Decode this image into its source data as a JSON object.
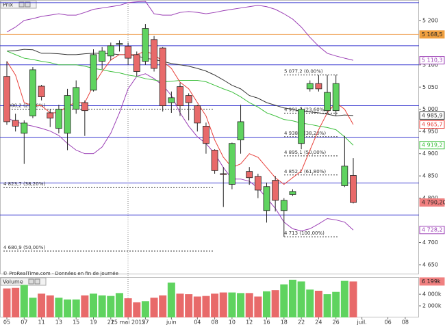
{
  "chart_data": [
    {
      "type": "candlestick",
      "title": "Prix",
      "note": "© ProRealTime.com · Données en fin de journée",
      "ylim": [
        4630,
        5246
      ],
      "yticks": [
        {
          "value": 5200,
          "label": "5 200"
        },
        {
          "value": 5100,
          "label": "5 100"
        },
        {
          "value": 5050,
          "label": "5 050"
        },
        {
          "value": 5000,
          "label": "5 000"
        },
        {
          "value": 4950,
          "label": "4 950"
        },
        {
          "value": 4900,
          "label": "4 900"
        },
        {
          "value": 4850,
          "label": "4 850"
        },
        {
          "value": 4800,
          "label": "4 800"
        },
        {
          "value": 4700,
          "label": "4 700"
        },
        {
          "value": 4650,
          "label": "4 650"
        }
      ],
      "up_color": "#5fd35f",
      "down_color": "#e86a6a",
      "open": [
        5074,
        4975,
        4946,
        4985,
        5052,
        4992,
        4957,
        4946,
        5000,
        5015,
        5043,
        5108,
        5120,
        5146,
        5142,
        5123,
        5108,
        5157,
        5138,
        5015,
        5051,
        5031,
        5008,
        4962,
        4908,
        4855,
        4831,
        4931,
        4860,
        4849,
        4772,
        4840,
        4772,
        4808,
        4923,
        5046,
        5058,
        4997,
        4997,
        4828,
        4851
      ],
      "high": [
        5108,
        4990,
        4975,
        5095,
        5055,
        5000,
        5010,
        5046,
        5065,
        5020,
        5135,
        5140,
        5150,
        5155,
        5150,
        5130,
        5192,
        5165,
        5140,
        5040,
        5060,
        5036,
        5010,
        4970,
        4910,
        4870,
        4925,
        5010,
        4870,
        4855,
        4835,
        4850,
        4800,
        4820,
        5005,
        5065,
        5077,
        5077,
        5077,
        4940,
        4890
      ],
      "low": [
        4965,
        4950,
        4877,
        4980,
        5020,
        4960,
        4946,
        4908,
        4990,
        4940,
        5040,
        5090,
        5110,
        5130,
        5100,
        5075,
        5100,
        5085,
        4995,
        4992,
        4985,
        4975,
        4950,
        4900,
        4855,
        4780,
        4820,
        4900,
        4830,
        4800,
        4745,
        4770,
        4713,
        4805,
        4910,
        5040,
        5040,
        4990,
        4985,
        4825,
        4788
      ],
      "close": [
        4972,
        4962,
        4969,
        5089,
        5028,
        4980,
        5000,
        5031,
        5049,
        4997,
        5123,
        5131,
        5143,
        5148,
        5115,
        5085,
        5182,
        5092,
        5008,
        5026,
        5008,
        5015,
        4969,
        4923,
        4862,
        4853,
        4923,
        4972,
        4846,
        4818,
        4826,
        4795,
        4795,
        4815,
        5000,
        5058,
        5046,
        5038,
        5058,
        4872,
        4790.2
      ],
      "lines": [
        {
          "color": "#9b3fb5",
          "values": [
            5174,
            5185,
            5200,
            5204,
            5209,
            5212,
            5215,
            5212,
            5212,
            5218,
            5225,
            5228,
            5231,
            5234,
            5240,
            5242,
            5243,
            5215,
            5212,
            5212,
            5218,
            5220,
            5218,
            5215,
            5218,
            5222,
            5225,
            5228,
            5231,
            5234,
            5231,
            5225,
            5215,
            5203,
            5185,
            5162,
            5142,
            5126,
            5120,
            5115,
            5110.3
          ]
        },
        {
          "color": "#9b3fb5",
          "values": [
            4981,
            4972,
            4966,
            4962,
            4957,
            4951,
            4941,
            4923,
            4908,
            4900,
            4900,
            4915,
            4946,
            4992,
            5046,
            5074,
            5080,
            5069,
            5054,
            5031,
            4992,
            4962,
            4938,
            4923,
            4900,
            4869,
            4843,
            4843,
            4838,
            4823,
            4800,
            4777,
            4746,
            4731,
            4726,
            4731,
            4742,
            4754,
            4751,
            4746,
            4728.2
          ]
        },
        {
          "color": "#333333",
          "values": [
            5131,
            5132,
            5135,
            5134,
            5126,
            5126,
            5125,
            5123,
            5123,
            5125,
            5126,
            5126,
            5125,
            5123,
            5123,
            5120,
            5115,
            5112,
            5108,
            5103,
            5100,
            5097,
            5092,
            5086,
            5077,
            5066,
            5054,
            5046,
            5031,
            5025,
            5015,
            5009,
            5003,
            5000,
            4995,
            4994,
            4992,
            4989,
            4985,
            4987,
            4985.9
          ]
        },
        {
          "color": "#3cbf3c",
          "values": [
            5131,
            5123,
            5115,
            5112,
            5108,
            5105,
            5100,
            5100,
            5100,
            5097,
            5092,
            5089,
            5085,
            5082,
            5077,
            5074,
            5069,
            5066,
            5062,
            5063,
            5065,
            5065,
            5065,
            5062,
            5054,
            5046,
            5039,
            5028,
            5015,
            5005,
            4992,
            4985,
            4977,
            4974,
            4969,
            4966,
            4962,
            4959,
            4954,
            4938,
            4919.2
          ]
        },
        {
          "color": "#e8403a",
          "values": [
            5108,
            5077,
            5015,
            5008,
            5008,
            4992,
            4992,
            5008,
            5015,
            5015,
            5054,
            5085,
            5111,
            5123,
            5123,
            5123,
            5131,
            5123,
            5108,
            5092,
            5061,
            5046,
            5015,
            4985,
            4931,
            4892,
            4869,
            4877,
            4900,
            4892,
            4869,
            4846,
            4831,
            4846,
            4861,
            4908,
            4954,
            4992,
            5015,
            5000,
            4965.7
          ]
        }
      ],
      "hlines": [
        {
          "value": 5240,
          "color": "#3a3ad0"
        },
        {
          "value": 5168.5,
          "color": "#f0a860"
        },
        {
          "value": 5143,
          "color": "#3a3ad0"
        },
        {
          "value": 5100,
          "color": "#3a3ad0"
        },
        {
          "value": 5008,
          "color": "#3a3ad0"
        },
        {
          "value": 4937,
          "color": "#3a3ad0"
        },
        {
          "value": 4834,
          "color": "#3a3ad0"
        },
        {
          "value": 4762,
          "color": "#3a3ad0"
        }
      ],
      "retracements": [
        [
          {
            "value": 5000.2,
            "label": "5 000,2 (23,60%)"
          },
          {
            "value": 4823.7,
            "label": "4 823,7 (38,20%)"
          },
          {
            "value": 4680.9,
            "label": "4 680,9 (50,00%)"
          }
        ],
        [
          {
            "value": 5077.2,
            "label": "5 077,2 (0,00%)"
          },
          {
            "value": 4991.3,
            "label": "4 991,3 (23,60%)"
          },
          {
            "value": 4938.1,
            "label": "4 938,1 (38,20%)"
          },
          {
            "value": 4895.1,
            "label": "4 895,1 (50,00%)"
          },
          {
            "value": 4852.1,
            "label": "4 852,1 (61,80%)"
          },
          {
            "value": 4713,
            "label": "4 713 (100,00%)"
          }
        ]
      ],
      "last_values": [
        {
          "value": 5168.5,
          "label": "5 168,5",
          "color": "#f0a040",
          "filled": true
        },
        {
          "value": 5110.3,
          "label": "5 110,3",
          "color": "#9b3fb5",
          "filled": false
        },
        {
          "value": 4985.9,
          "label": "4 985,9",
          "color": "#333333",
          "filled": false
        },
        {
          "value": 4965.7,
          "label": "4 965,7",
          "color": "#e8403a",
          "filled": false
        },
        {
          "value": 4919.2,
          "label": "4 919,2",
          "color": "#3cbf3c",
          "filled": false
        },
        {
          "value": 4790.2,
          "label": "4 790,20",
          "color": "#f08080",
          "filled": true
        },
        {
          "value": 4728.2,
          "label": "4 728,2",
          "color": "#9b3fb5",
          "filled": false
        }
      ]
    },
    {
      "type": "bar",
      "title": "Volume",
      "ylim": [
        0,
        6900
      ],
      "yticks": [
        {
          "value": 4000,
          "label": "4 000k"
        },
        {
          "value": 2000,
          "label": "2 000k"
        }
      ],
      "categories": [
        "05",
        null,
        "07",
        null,
        "11",
        null,
        "13",
        null,
        "15",
        null,
        "19",
        null,
        "21",
        null,
        "25 mai 2015",
        null,
        "27",
        null,
        null,
        "juin",
        null,
        null,
        "04",
        null,
        "08",
        null,
        "10",
        null,
        "12",
        null,
        "16",
        null,
        "18",
        null,
        "22",
        null,
        "24",
        null,
        "26",
        null,
        null,
        "juil.",
        null,
        null,
        "06",
        null,
        "08"
      ],
      "values": [
        5000,
        5100,
        5600,
        3400,
        4100,
        3800,
        3400,
        3100,
        3100,
        3800,
        4100,
        3800,
        3700,
        4200,
        3300,
        2600,
        2800,
        3400,
        3800,
        6000,
        4100,
        4000,
        3600,
        3700,
        4100,
        4300,
        4300,
        4200,
        4200,
        3600,
        4500,
        4700,
        5700,
        6500,
        6200,
        4800,
        4600,
        4000,
        4400,
        6300,
        6199,
        null,
        null,
        null,
        null,
        null,
        null
      ],
      "last_values": [
        {
          "value": 6199,
          "label": "6 199k",
          "color": "#f08080",
          "filled": true
        }
      ]
    }
  ]
}
